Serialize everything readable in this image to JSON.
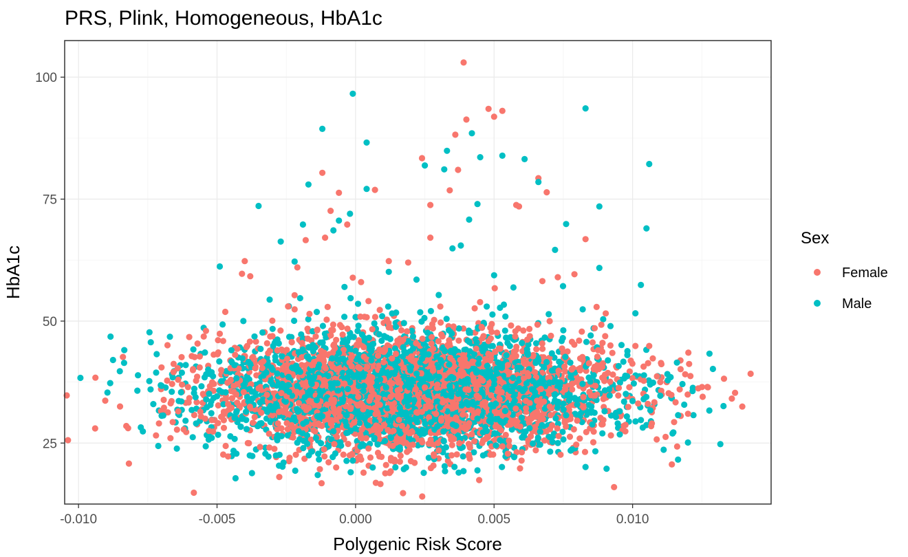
{
  "chart_data": {
    "type": "scatter",
    "title": "PRS, Plink, Homogeneous, HbA1c",
    "xlabel": "Polygenic Risk Score",
    "ylabel": "HbA1c",
    "xlim": [
      -0.0105,
      0.015
    ],
    "ylim": [
      12.5,
      107.5
    ],
    "x_ticks": [
      -0.01,
      -0.005,
      0.0,
      0.005,
      0.01
    ],
    "x_tick_labels": [
      "-0.010",
      "-0.005",
      "0.000",
      "0.005",
      "0.010"
    ],
    "y_ticks": [
      25,
      50,
      75,
      100
    ],
    "y_tick_labels": [
      "25",
      "50",
      "75",
      "100"
    ],
    "grid": true,
    "legend": {
      "title": "Sex",
      "position": "right"
    },
    "series": [
      {
        "name": "Female",
        "color": "#F8766D",
        "points": [
          [
            -0.0094,
            28.0
          ],
          [
            -0.0085,
            32.5
          ],
          [
            -0.0068,
            37.8
          ],
          [
            -0.0066,
            29.3
          ],
          [
            -0.0064,
            31.5
          ],
          [
            -0.0062,
            27.8
          ],
          [
            -0.006,
            34.2
          ],
          [
            -0.0054,
            48.0
          ],
          [
            -0.0049,
            47.4
          ],
          [
            -0.0041,
            59.7
          ],
          [
            -0.004,
            62.3
          ],
          [
            -0.0038,
            59.2
          ],
          [
            -0.003,
            46.9
          ],
          [
            -0.0022,
            55.3
          ],
          [
            -0.0022,
            52.4
          ],
          [
            -0.0021,
            61.0
          ],
          [
            -0.0018,
            66.6
          ],
          [
            -0.0012,
            80.4
          ],
          [
            -0.0011,
            67.1
          ],
          [
            -0.0009,
            72.6
          ],
          [
            -0.0006,
            76.3
          ],
          [
            -0.0003,
            69.8
          ],
          [
            -0.0001,
            58.9
          ],
          [
            0.0002,
            58.0
          ],
          [
            0.0007,
            76.9
          ],
          [
            0.0009,
            16.6
          ],
          [
            0.0011,
            20.5
          ],
          [
            -0.0007,
            20.0
          ],
          [
            0.0012,
            62.3
          ],
          [
            0.0019,
            62.0
          ],
          [
            0.002,
            21.3
          ],
          [
            0.0024,
            83.4
          ],
          [
            0.0027,
            73.8
          ],
          [
            0.0027,
            67.1
          ],
          [
            0.0034,
            76.8
          ],
          [
            0.0036,
            88.2
          ],
          [
            0.0037,
            81.0
          ],
          [
            0.0039,
            103.0
          ],
          [
            0.004,
            91.3
          ],
          [
            0.0048,
            93.5
          ],
          [
            0.005,
            91.9
          ],
          [
            0.0053,
            93.1
          ],
          [
            0.0058,
            73.8
          ],
          [
            0.0059,
            73.5
          ],
          [
            0.0066,
            79.3
          ],
          [
            0.0069,
            76.4
          ],
          [
            0.0073,
            59.0
          ],
          [
            0.0079,
            59.6
          ],
          [
            0.0083,
            66.8
          ],
          [
            0.0087,
            52.9
          ],
          [
            0.0092,
            45.0
          ],
          [
            0.0101,
            44.9
          ],
          [
            0.0106,
            44.9
          ],
          [
            0.011,
            37.5
          ],
          [
            0.0113,
            35.2
          ],
          [
            0.0115,
            29.3
          ],
          [
            0.0117,
            36.0
          ],
          [
            0.0119,
            39.1
          ],
          [
            0.012,
            31.0
          ],
          [
            0.0127,
            36.5
          ],
          [
            0.0133,
            38.2
          ],
          [
            0.0137,
            35.3
          ],
          [
            0.0074,
            22.6
          ],
          [
            0.006,
            23.1
          ],
          [
            0.003,
            23.5
          ],
          [
            -0.0024,
            21.3
          ],
          [
            -0.0046,
            33.0
          ],
          [
            -0.0035,
            36.2
          ],
          [
            -0.0015,
            41.6
          ],
          [
            0.0005,
            33.7
          ],
          [
            0.0015,
            38.8
          ],
          [
            0.0025,
            36.4
          ],
          [
            0.0035,
            32.1
          ],
          [
            0.0045,
            37.9
          ],
          [
            0.0065,
            30.4
          ],
          [
            0.0085,
            34.8
          ],
          [
            0.0095,
            36.3
          ],
          [
            0.0102,
            33.1
          ],
          [
            -0.001,
            30.9
          ],
          [
            0.0003,
            42.7
          ],
          [
            0.0018,
            27.6
          ],
          [
            0.0028,
            44.3
          ],
          [
            0.0042,
            26.8
          ],
          [
            0.0055,
            41.0
          ],
          [
            0.007,
            38.4
          ],
          [
            0.008,
            29.6
          ],
          [
            -0.0056,
            31.4
          ],
          [
            -0.0028,
            29.0
          ],
          [
            0.0012,
            48.7
          ],
          [
            0.0048,
            45.9
          ],
          [
            0.0062,
            46.2
          ],
          [
            0.0078,
            40.1
          ],
          [
            0.009,
            39.0
          ],
          [
            -0.0004,
            37.2
          ],
          [
            0.0022,
            31.3
          ],
          [
            0.0038,
            39.9
          ],
          [
            0.0052,
            34.0
          ],
          [
            0.0068,
            33.5
          ],
          [
            -0.0032,
            34.9
          ],
          [
            -0.0018,
            36.8
          ]
        ]
      },
      {
        "name": "Male",
        "color": "#00BFC4",
        "points": [
          [
            -0.0074,
            36.0
          ],
          [
            -0.0073,
            33.0
          ],
          [
            -0.007,
            30.6
          ],
          [
            -0.0067,
            46.8
          ],
          [
            -0.0063,
            35.4
          ],
          [
            -0.0053,
            25.7
          ],
          [
            -0.0049,
            61.2
          ],
          [
            -0.0048,
            49.3
          ],
          [
            -0.0035,
            73.6
          ],
          [
            -0.0031,
            54.4
          ],
          [
            -0.0027,
            66.3
          ],
          [
            -0.0026,
            21.0
          ],
          [
            -0.0022,
            62.2
          ],
          [
            -0.002,
            54.7
          ],
          [
            -0.0019,
            69.8
          ],
          [
            -0.0017,
            78.0
          ],
          [
            -0.0012,
            89.4
          ],
          [
            -0.0008,
            68.6
          ],
          [
            -0.0006,
            70.6
          ],
          [
            -0.0004,
            57.0
          ],
          [
            -0.0002,
            72.0
          ],
          [
            -0.0001,
            96.6
          ],
          [
            0.0004,
            86.6
          ],
          [
            0.0004,
            77.1
          ],
          [
            0.0012,
            60.1
          ],
          [
            0.0016,
            24.1
          ],
          [
            0.0022,
            58.5
          ],
          [
            0.0025,
            81.9
          ],
          [
            0.0032,
            81.1
          ],
          [
            0.0033,
            84.9
          ],
          [
            0.0035,
            64.9
          ],
          [
            0.0038,
            65.5
          ],
          [
            0.0041,
            70.8
          ],
          [
            0.0042,
            88.5
          ],
          [
            0.0044,
            74.0
          ],
          [
            0.0045,
            83.6
          ],
          [
            0.0044,
            19.4
          ],
          [
            0.0053,
            83.9
          ],
          [
            0.0061,
            83.2
          ],
          [
            0.0066,
            78.5
          ],
          [
            0.0072,
            64.6
          ],
          [
            0.0076,
            69.9
          ],
          [
            0.0083,
            93.6
          ],
          [
            0.0088,
            73.5
          ],
          [
            0.0083,
            20.1
          ],
          [
            0.0088,
            60.9
          ],
          [
            0.0096,
            45.1
          ],
          [
            0.0101,
            51.6
          ],
          [
            0.0103,
            57.4
          ],
          [
            0.0105,
            69.0
          ],
          [
            0.0106,
            82.2
          ],
          [
            0.011,
            34.7
          ],
          [
            0.0116,
            41.5
          ],
          [
            0.0118,
            37.1
          ],
          [
            0.0129,
            40.2
          ],
          [
            0.0104,
            34.0
          ],
          [
            0.0098,
            38.7
          ],
          [
            -0.0001,
            21.4
          ],
          [
            0.0008,
            24.7
          ],
          [
            0.0064,
            24.9
          ],
          [
            0.0057,
            56.9
          ],
          [
            0.005,
            59.4
          ],
          [
            0.0075,
            48.1
          ],
          [
            0.0082,
            52.4
          ],
          [
            -0.0038,
            41.2
          ],
          [
            -0.0043,
            38.3
          ],
          [
            -0.003,
            31.8
          ],
          [
            -0.0012,
            30.5
          ],
          [
            0.0,
            43.9
          ],
          [
            0.001,
            35.1
          ],
          [
            0.002,
            29.8
          ],
          [
            0.003,
            40.6
          ],
          [
            0.004,
            33.4
          ],
          [
            0.005,
            38.0
          ],
          [
            0.006,
            30.2
          ],
          [
            0.007,
            37.4
          ],
          [
            0.008,
            32.9
          ],
          [
            0.009,
            35.8
          ],
          [
            -0.002,
            39.6
          ],
          [
            -0.0008,
            27.4
          ],
          [
            0.0006,
            45.2
          ],
          [
            0.0016,
            32.2
          ],
          [
            0.0026,
            47.6
          ],
          [
            0.0036,
            28.6
          ],
          [
            0.0046,
            43.8
          ],
          [
            0.0056,
            35.7
          ],
          [
            0.0066,
            41.9
          ],
          [
            0.0076,
            30.7
          ],
          [
            0.0086,
            38.9
          ],
          [
            -0.005,
            34.6
          ],
          [
            -0.0024,
            35.5
          ],
          [
            0.0014,
            39.2
          ],
          [
            0.0034,
            36.7
          ],
          [
            0.0054,
            31.6
          ],
          [
            0.0072,
            35.0
          ],
          [
            -0.0014,
            33.8
          ],
          [
            0.0024,
            42.3
          ],
          [
            0.0044,
            30.0
          ],
          [
            0.0064,
            37.7
          ],
          [
            0.0094,
            31.2
          ]
        ]
      }
    ],
    "dense_band": {
      "n_per_series": 2600,
      "y_center": 35.5,
      "y_spread": 6.0
    }
  }
}
